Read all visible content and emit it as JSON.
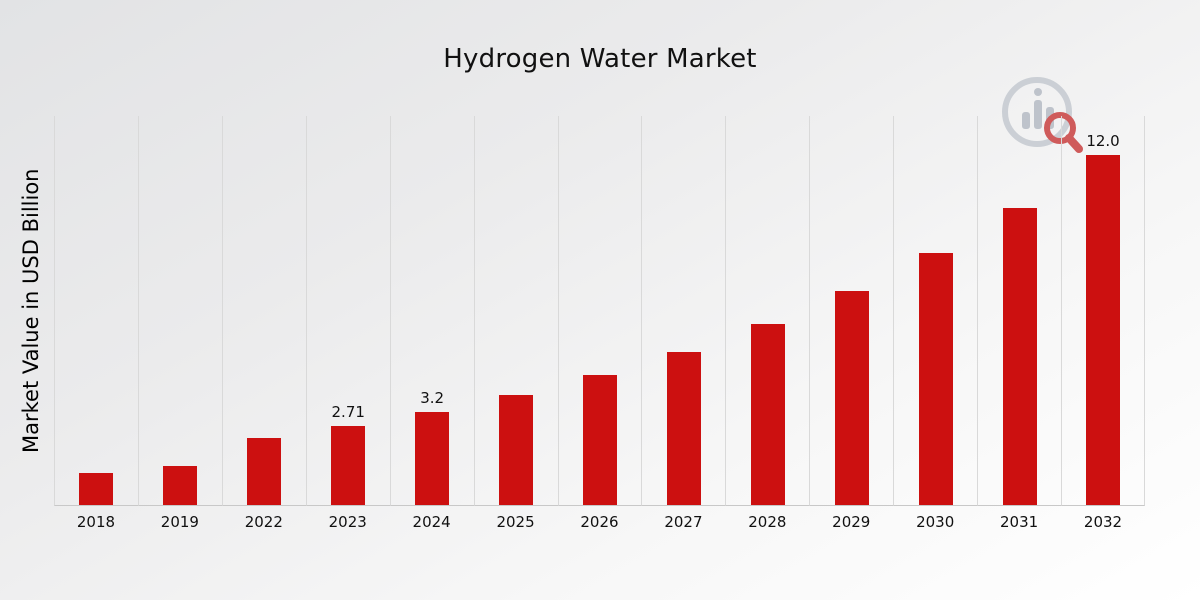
{
  "page": {
    "footer_color": "#a00d0d"
  },
  "logo": {
    "circle_color": "#c7ccd2",
    "bars_color": "#b9bfc7",
    "magnifier_color": "#cc4b4b"
  },
  "chart_data": {
    "type": "bar",
    "title": "Hydrogen Water Market",
    "ylabel": "Market Value in USD Billion",
    "xlabel": "",
    "categories": [
      "2018",
      "2019",
      "2022",
      "2023",
      "2024",
      "2025",
      "2026",
      "2027",
      "2028",
      "2029",
      "2030",
      "2031",
      "2032"
    ],
    "values": [
      1.1,
      1.35,
      2.3,
      2.71,
      3.2,
      3.78,
      4.46,
      5.26,
      6.21,
      7.33,
      8.64,
      10.18,
      12.0
    ],
    "bar_labels": [
      "",
      "",
      "",
      "2.71",
      "3.2",
      "",
      "",
      "",
      "",
      "",
      "",
      "",
      "12.0"
    ],
    "bar_color": "#cc1010",
    "ylim": [
      0,
      13.35
    ],
    "grid": "vertical",
    "legend": "none"
  }
}
